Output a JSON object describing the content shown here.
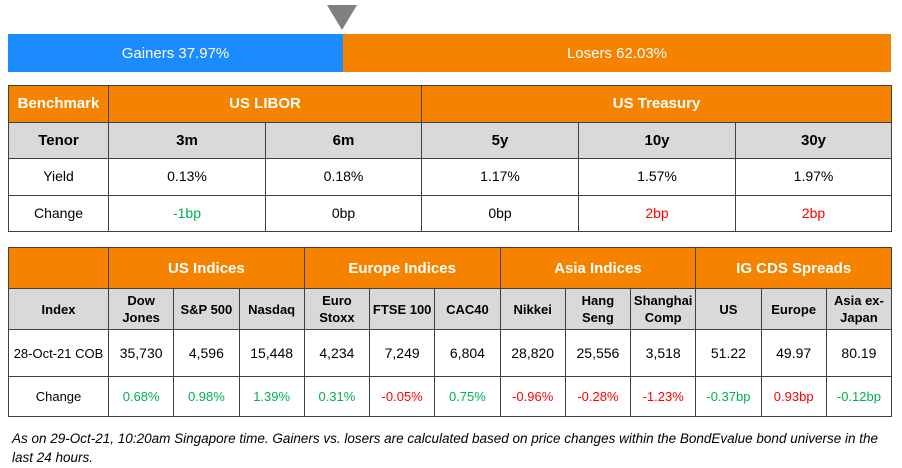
{
  "breadth": {
    "gainers_label": "Gainers 37.97%",
    "losers_label": "Losers 62.03%",
    "gainers_pct": 37.97,
    "losers_pct": 62.03
  },
  "rates": {
    "header": {
      "benchmark": "Benchmark",
      "libor": "US LIBOR",
      "treasury": "US Treasury"
    },
    "tenor_label": "Tenor",
    "tenors": [
      "3m",
      "6m",
      "5y",
      "10y",
      "30y"
    ],
    "yield_label": "Yield",
    "yields": [
      "0.13%",
      "0.18%",
      "1.17%",
      "1.57%",
      "1.97%"
    ],
    "change_label": "Change",
    "changes": [
      "-1bp",
      "0bp",
      "0bp",
      "2bp",
      "2bp"
    ]
  },
  "indices": {
    "groups": [
      "US Indices",
      "Europe Indices",
      "Asia Indices",
      "IG CDS Spreads"
    ],
    "index_label": "Index",
    "names": [
      [
        "Dow",
        "Jones"
      ],
      [
        "S&P 500",
        ""
      ],
      [
        "Nasdaq",
        ""
      ],
      [
        "Euro",
        "Stoxx"
      ],
      [
        "FTSE 100",
        ""
      ],
      [
        "CAC40",
        ""
      ],
      [
        "Nikkei",
        ""
      ],
      [
        "Hang",
        "Seng"
      ],
      [
        "Shanghai",
        "Comp"
      ],
      [
        "US",
        ""
      ],
      [
        "Europe",
        ""
      ],
      [
        "Asia ex-",
        "Japan"
      ]
    ],
    "date_label": "28-Oct-21 COB",
    "values": [
      "35,730",
      "4,596",
      "15,448",
      "4,234",
      "7,249",
      "6,804",
      "28,820",
      "25,556",
      "3,518",
      "51.22",
      "49.97",
      "80.19"
    ],
    "change_label": "Change",
    "changes": [
      "0.68%",
      "0.98%",
      "1.39%",
      "0.31%",
      "-0.05%",
      "0.75%",
      "-0.96%",
      "-0.28%",
      "-1.23%",
      "-0.37bp",
      "0.93bp",
      "-0.12bp"
    ],
    "change_colors": [
      "g",
      "g",
      "g",
      "g",
      "r",
      "g",
      "r",
      "r",
      "r",
      "g",
      "r",
      "g"
    ]
  },
  "footnote": "As on 29-Oct-21, 10:20am Singapore time. Gainers vs. losers are calculated based on price changes within the BondEvalue bond universe in the last 24 hours."
}
